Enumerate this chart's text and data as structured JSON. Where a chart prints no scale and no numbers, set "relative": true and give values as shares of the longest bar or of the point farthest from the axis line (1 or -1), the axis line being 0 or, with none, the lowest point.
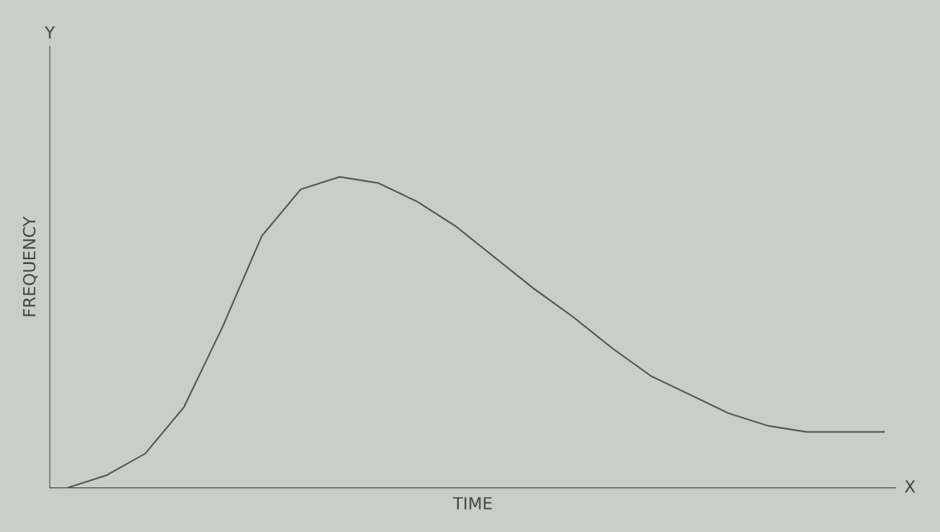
{
  "chart_data": {
    "type": "line",
    "relative": true,
    "xlabel": "TIME",
    "ylabel": "FREQUENCY",
    "annotations": [
      "Y",
      "X"
    ],
    "categories": [
      null,
      null,
      null,
      null,
      null,
      null,
      null,
      null,
      null,
      null,
      null,
      null,
      null,
      null,
      null,
      null,
      null,
      null,
      null,
      null,
      null,
      null
    ],
    "series": [
      {
        "color": "#505a50",
        "values": [
          0,
          0.04,
          0.11,
          0.26,
          0.52,
          0.81,
          0.96,
          1.0,
          0.98,
          0.92,
          0.84,
          0.74,
          0.64,
          0.55,
          0.45,
          0.36,
          0.3,
          0.24,
          0.2,
          0.18,
          0.18,
          0.18
        ]
      }
    ],
    "grid": false,
    "legend": false,
    "marker": "none",
    "line_style": "solid",
    "tick_labels": false
  }
}
